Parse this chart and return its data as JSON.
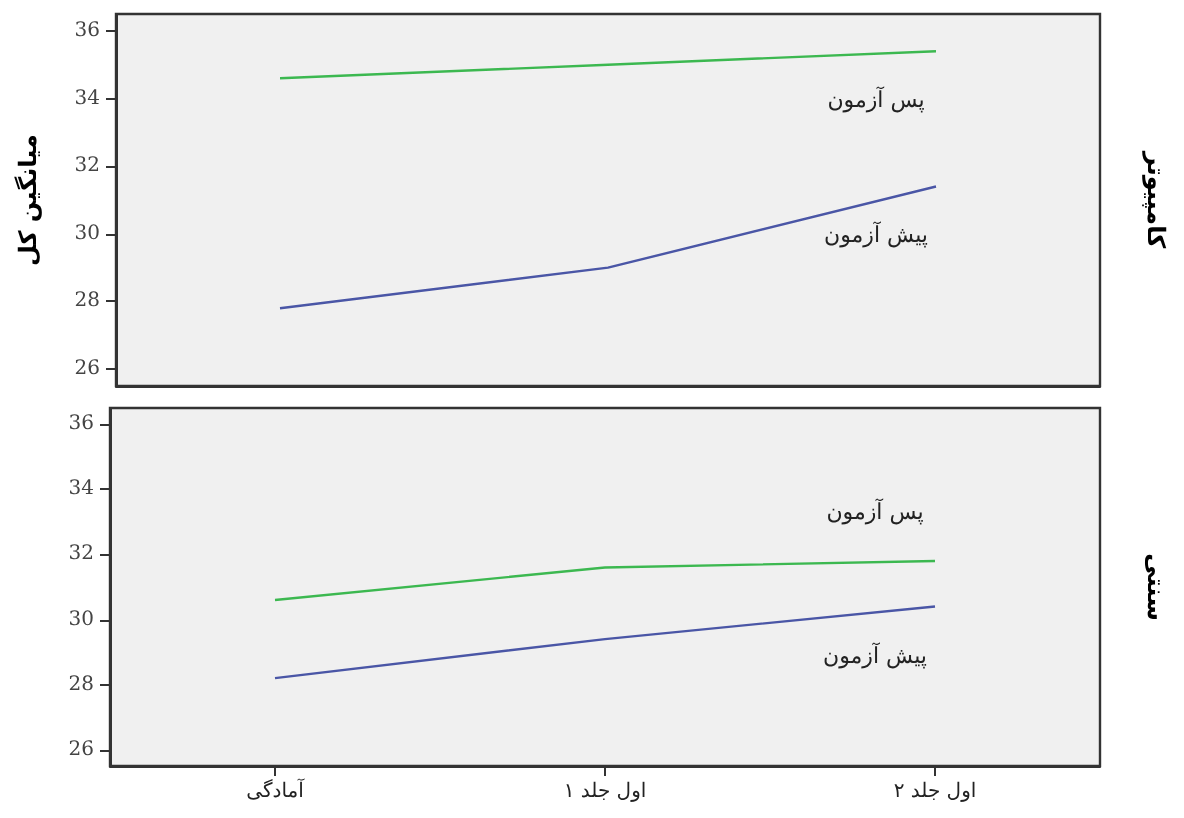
{
  "chart_data": [
    {
      "type": "line",
      "y2label": "کامپیوتر",
      "ylabel": "میانگین کل",
      "categories": [
        null,
        null,
        null
      ],
      "tick_labels": "y",
      "ylim": [
        25.5,
        36.5
      ],
      "yticks": [
        26,
        28,
        30,
        32,
        34,
        36
      ],
      "grid": false,
      "legend": false,
      "series": [
        {
          "name": "پس آزمون",
          "color": "#3cb850",
          "values": [
            34.6,
            35.0,
            35.4
          ]
        },
        {
          "name": "پیش آزمون",
          "color": "#4a56a6",
          "values": [
            27.8,
            29.0,
            31.4
          ]
        }
      ]
    },
    {
      "type": "line",
      "y2label": "سنتی",
      "categories": [
        "آمادگی",
        "اول جلد ۱",
        "اول جلد ۲"
      ],
      "ylim": [
        25.5,
        36.5
      ],
      "yticks": [
        26,
        28,
        30,
        32,
        34,
        36
      ],
      "grid": false,
      "legend": false,
      "series": [
        {
          "name": "پس آزمون",
          "color": "#3cb850",
          "values": [
            30.6,
            31.6,
            31.8
          ]
        },
        {
          "name": "پیش آزمون",
          "color": "#4a56a6",
          "values": [
            28.2,
            29.4,
            30.4
          ]
        }
      ]
    }
  ]
}
